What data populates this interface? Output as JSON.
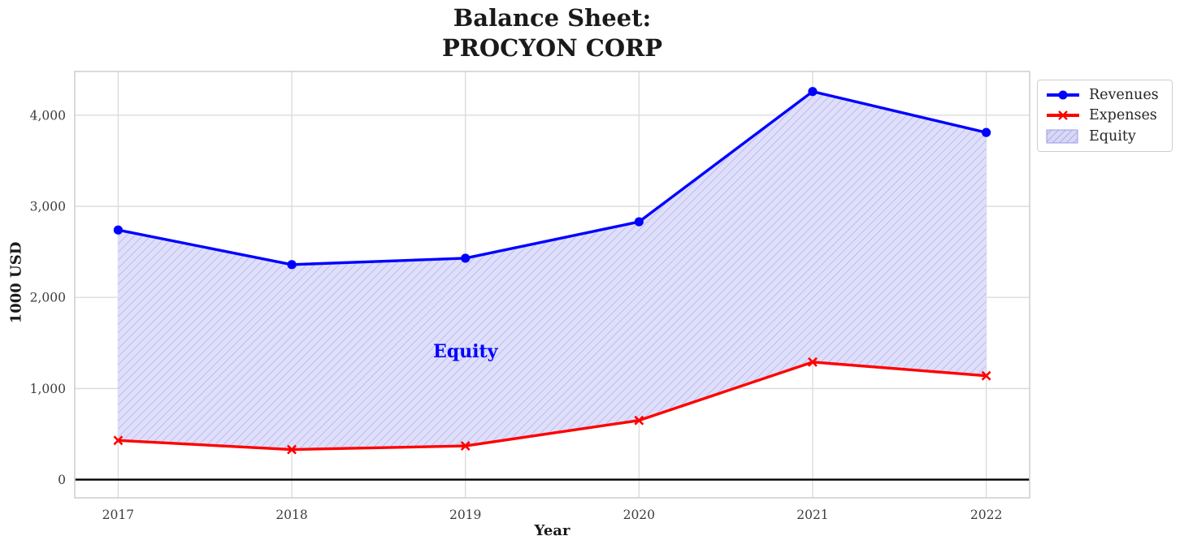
{
  "title_lines": [
    "Balance Sheet:",
    "PROCYON CORP"
  ],
  "chart_data": {
    "type": "line",
    "title": "Balance Sheet: PROCYON CORP",
    "xlabel": "Year",
    "ylabel": "1000 USD",
    "x": [
      2017,
      2018,
      2019,
      2020,
      2021,
      2022
    ],
    "series": [
      {
        "name": "Revenues",
        "color": "#0000ff",
        "marker": "circle",
        "values": [
          2740,
          2360,
          2430,
          2830,
          4260,
          3810
        ]
      },
      {
        "name": "Expenses",
        "color": "#ff0000",
        "marker": "x",
        "values": [
          430,
          330,
          370,
          650,
          1290,
          1140
        ]
      }
    ],
    "area": {
      "name": "Equity",
      "between": [
        "Revenues",
        "Expenses"
      ],
      "fill": "#dfdffa",
      "hatch_color": "#b3b3f0",
      "label_x": 2019,
      "label_y": 1405,
      "label_color": "#0000ff"
    },
    "xlim": [
      2016.75,
      2022.25
    ],
    "ylim": [
      -200,
      4480
    ],
    "xticks": [
      {
        "v": 2017,
        "label": "2017"
      },
      {
        "v": 2018,
        "label": "2018"
      },
      {
        "v": 2019,
        "label": "2019"
      },
      {
        "v": 2020,
        "label": "2020"
      },
      {
        "v": 2021,
        "label": "2021"
      },
      {
        "v": 2022,
        "label": "2022"
      }
    ],
    "yticks": [
      {
        "v": 0,
        "label": "0"
      },
      {
        "v": 1000,
        "label": "1,000"
      },
      {
        "v": 2000,
        "label": "2,000"
      },
      {
        "v": 3000,
        "label": "3,000"
      },
      {
        "v": 4000,
        "label": "4,000"
      }
    ],
    "grid": true,
    "zero_line": true,
    "legend": {
      "position": "outside-top-right"
    }
  }
}
